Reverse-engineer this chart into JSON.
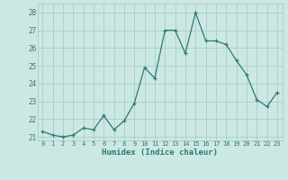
{
  "x": [
    0,
    1,
    2,
    3,
    4,
    5,
    6,
    7,
    8,
    9,
    10,
    11,
    12,
    13,
    14,
    15,
    16,
    17,
    18,
    19,
    20,
    21,
    22,
    23
  ],
  "y": [
    21.3,
    21.1,
    21.0,
    21.1,
    21.5,
    21.4,
    22.2,
    21.4,
    21.9,
    22.9,
    24.9,
    24.3,
    27.0,
    27.0,
    25.7,
    28.0,
    26.4,
    26.4,
    26.2,
    25.3,
    24.5,
    23.1,
    22.7,
    23.5
  ],
  "xlabel": "Humidex (Indice chaleur)",
  "ylim": [
    20.8,
    28.5
  ],
  "xlim": [
    -0.5,
    23.5
  ],
  "yticks": [
    21,
    22,
    23,
    24,
    25,
    26,
    27,
    28
  ],
  "xticks": [
    0,
    1,
    2,
    3,
    4,
    5,
    6,
    7,
    8,
    9,
    10,
    11,
    12,
    13,
    14,
    15,
    16,
    17,
    18,
    19,
    20,
    21,
    22,
    23
  ],
  "line_color": "#2d7a6e",
  "marker_color": "#2d7a6e",
  "bg_color": "#cce8e4",
  "grid_color": "#aacccc",
  "tick_color": "#2d7a6e",
  "label_color": "#2d7a6e"
}
